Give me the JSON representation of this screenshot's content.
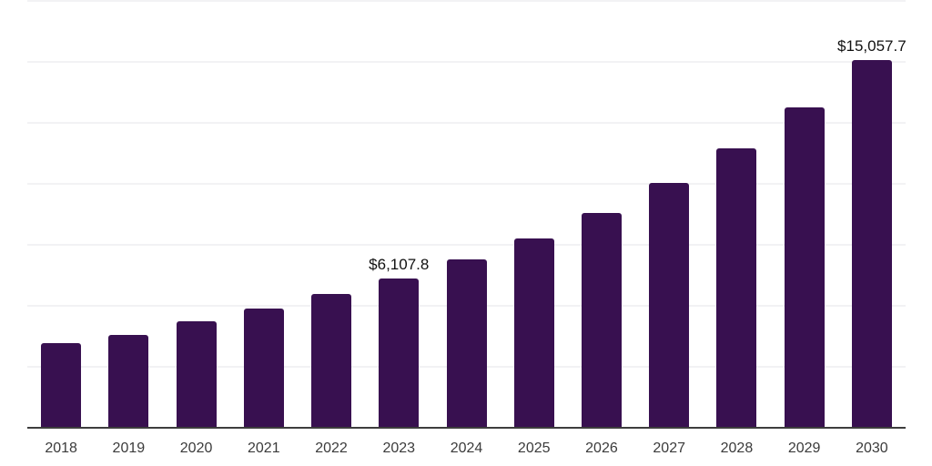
{
  "chart_data": {
    "type": "bar",
    "title": "",
    "xlabel": "",
    "ylabel": "",
    "categories": [
      "2018",
      "2019",
      "2020",
      "2021",
      "2022",
      "2023",
      "2024",
      "2025",
      "2026",
      "2027",
      "2028",
      "2029",
      "2030"
    ],
    "values": [
      3480,
      3795,
      4355,
      4880,
      5475,
      6107.8,
      6900,
      7750,
      8805,
      10040,
      11440,
      13120,
      15057.7
    ],
    "point_labels": [
      "",
      "",
      "",
      "",
      "",
      "$6,107.8",
      "",
      "",
      "",
      "",
      "",
      "",
      "$15,057.7"
    ],
    "ylim": [
      0,
      17500
    ],
    "gridline_step": 2500,
    "grid": true,
    "y_axis_labels_visible": false,
    "legend": "none",
    "colors": {
      "bar": "#381050",
      "gridline": "#f2f2f4",
      "axis_line": "#3d3d3d",
      "tick_label": "#3b3b3b",
      "value_label": "#111111",
      "background": "#ffffff"
    }
  }
}
